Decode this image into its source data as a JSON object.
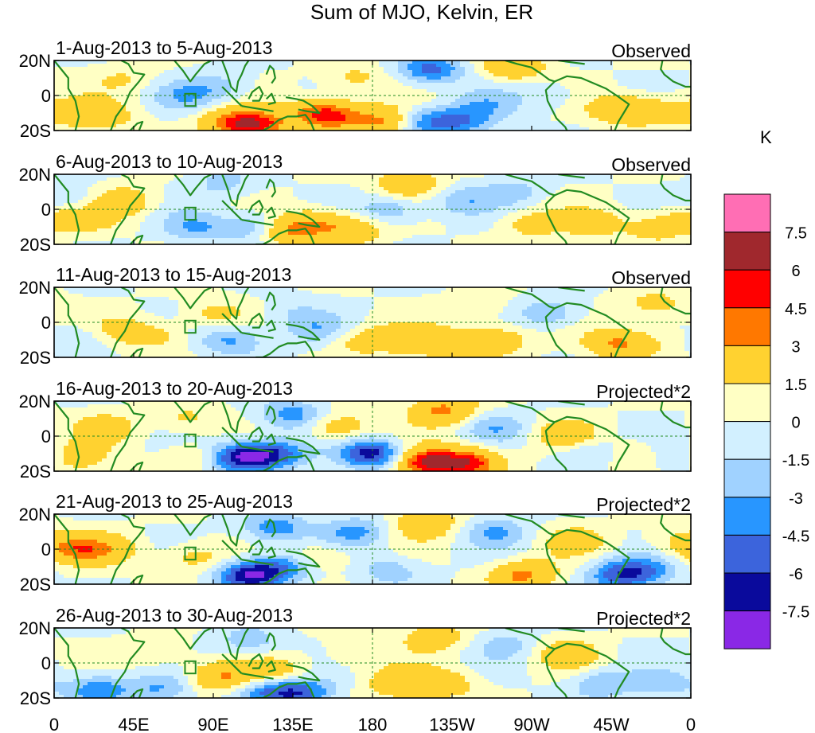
{
  "title": "Sum of MJO, Kelvin, ER",
  "colorbar": {
    "units": "K",
    "tick_labels": [
      "7.5",
      "6",
      "4.5",
      "3",
      "1.5",
      "0",
      "-1.5",
      "-3",
      "-4.5",
      "-6",
      "-7.5"
    ],
    "colors": [
      "#ff6eb4",
      "#a0282d",
      "#ff0000",
      "#ff7800",
      "#ffd230",
      "#ffffc4",
      "#d2f0ff",
      "#a0d2ff",
      "#2896ff",
      "#3c64dc",
      "#0a0a9c",
      "#8a28e6"
    ]
  },
  "axes": {
    "x_tick_labels": [
      "0",
      "45E",
      "90E",
      "135E",
      "180",
      "135W",
      "90W",
      "45W",
      "0"
    ],
    "y_tick_labels": [
      "20N",
      "0",
      "20S"
    ]
  },
  "panels": [
    {
      "date": "1-Aug-2013 to 5-Aug-2013",
      "label": "Observed"
    },
    {
      "date": "6-Aug-2013 to 10-Aug-2013",
      "label": "Observed"
    },
    {
      "date": "11-Aug-2013 to 15-Aug-2013",
      "label": "Observed"
    },
    {
      "date": "16-Aug-2013 to 20-Aug-2013",
      "label": "Projected*2"
    },
    {
      "date": "21-Aug-2013 to 25-Aug-2013",
      "label": "Projected*2"
    },
    {
      "date": "26-Aug-2013 to 30-Aug-2013",
      "label": "Projected*2"
    }
  ],
  "anomalies": [
    [
      [
        10,
        -10,
        2.5
      ],
      [
        30,
        -12,
        2.2
      ],
      [
        100,
        -15,
        4
      ],
      [
        115,
        -17,
        6
      ],
      [
        150,
        -10,
        4.5
      ],
      [
        160,
        -12,
        3.5
      ],
      [
        190,
        -15,
        6
      ],
      [
        205,
        -15,
        -5
      ],
      [
        230,
        -15,
        -4
      ],
      [
        213,
        15,
        -5
      ],
      [
        260,
        17,
        4
      ],
      [
        320,
        -8,
        3.5
      ],
      [
        340,
        -8,
        2.5
      ],
      [
        75,
        0,
        -2.5
      ],
      [
        95,
        5,
        -2
      ],
      [
        170,
        10,
        2
      ],
      [
        280,
        0,
        -1.5
      ],
      [
        40,
        10,
        1.5
      ],
      [
        245,
        -5,
        -2
      ]
    ],
    [
      [
        10,
        5,
        -2
      ],
      [
        20,
        -5,
        2
      ],
      [
        40,
        5,
        3
      ],
      [
        130,
        -12,
        5
      ],
      [
        150,
        -8,
        3.5
      ],
      [
        115,
        -10,
        -4
      ],
      [
        80,
        -10,
        -3
      ],
      [
        200,
        15,
        4
      ],
      [
        190,
        0,
        -3
      ],
      [
        230,
        5,
        -2.5
      ],
      [
        270,
        -8,
        2.5
      ],
      [
        305,
        -8,
        2.5
      ],
      [
        340,
        -10,
        2.5
      ],
      [
        360,
        -5,
        2
      ],
      [
        95,
        15,
        -2
      ],
      [
        170,
        -12,
        3
      ],
      [
        260,
        10,
        -2
      ]
    ],
    [
      [
        10,
        -10,
        -2.5
      ],
      [
        40,
        -5,
        2
      ],
      [
        60,
        -8,
        2
      ],
      [
        100,
        -10,
        -3.5
      ],
      [
        135,
        5,
        -1.5
      ],
      [
        170,
        -10,
        2.5
      ],
      [
        195,
        -10,
        2.5
      ],
      [
        220,
        -12,
        3.5
      ],
      [
        250,
        -10,
        3.5
      ],
      [
        280,
        5,
        -3
      ],
      [
        320,
        -12,
        5
      ],
      [
        340,
        10,
        2.5
      ],
      [
        150,
        -5,
        -2.5
      ],
      [
        90,
        5,
        2
      ],
      [
        355,
        -10,
        1.5
      ],
      [
        240,
        8,
        1.5
      ]
    ],
    [
      [
        10,
        -12,
        4
      ],
      [
        30,
        5,
        2.5
      ],
      [
        75,
        10,
        2
      ],
      [
        105,
        -12,
        -7
      ],
      [
        125,
        -10,
        -5
      ],
      [
        135,
        12,
        -4
      ],
      [
        180,
        -10,
        -7
      ],
      [
        210,
        -15,
        7.5
      ],
      [
        235,
        -15,
        6.5
      ],
      [
        220,
        15,
        5
      ],
      [
        160,
        5,
        3.5
      ],
      [
        290,
        0,
        3.5
      ],
      [
        300,
        -8,
        -2.5
      ],
      [
        355,
        -12,
        -3
      ],
      [
        250,
        5,
        -2.5
      ],
      [
        80,
        -12,
        2
      ],
      [
        330,
        -10,
        2
      ]
    ],
    [
      [
        10,
        0,
        4
      ],
      [
        30,
        0,
        3
      ],
      [
        110,
        -15,
        -7
      ],
      [
        130,
        -10,
        -4
      ],
      [
        125,
        12,
        -4
      ],
      [
        170,
        10,
        -3.5
      ],
      [
        210,
        15,
        4
      ],
      [
        250,
        10,
        -3
      ],
      [
        265,
        -15,
        5
      ],
      [
        320,
        -15,
        -5
      ],
      [
        335,
        -12,
        -3
      ],
      [
        295,
        5,
        2.5
      ],
      [
        150,
        -5,
        2.5
      ],
      [
        80,
        -5,
        2.5
      ],
      [
        190,
        -12,
        -2.5
      ],
      [
        350,
        5,
        1.5
      ]
    ],
    [
      [
        25,
        -15,
        -4
      ],
      [
        60,
        -15,
        -3
      ],
      [
        95,
        -8,
        4.5
      ],
      [
        125,
        -5,
        3
      ],
      [
        140,
        -17,
        -5
      ],
      [
        120,
        -16,
        -4
      ],
      [
        110,
        12,
        -2.5
      ],
      [
        195,
        -12,
        3.5
      ],
      [
        220,
        -12,
        3
      ],
      [
        215,
        15,
        3
      ],
      [
        255,
        10,
        -2
      ],
      [
        290,
        5,
        3
      ],
      [
        310,
        -12,
        -3
      ],
      [
        345,
        -12,
        -2
      ],
      [
        170,
        5,
        1.5
      ],
      [
        60,
        5,
        1.5
      ]
    ]
  ]
}
